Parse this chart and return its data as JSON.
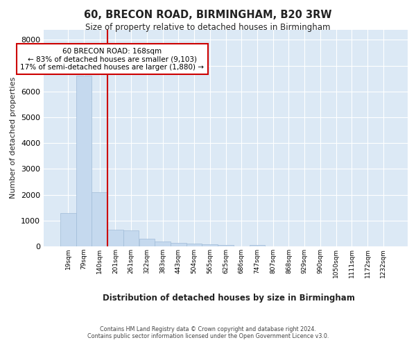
{
  "title1": "60, BRECON ROAD, BIRMINGHAM, B20 3RW",
  "title2": "Size of property relative to detached houses in Birmingham",
  "xlabel": "Distribution of detached houses by size in Birmingham",
  "ylabel": "Number of detached properties",
  "bar_labels": [
    "19sqm",
    "79sqm",
    "140sqm",
    "201sqm",
    "261sqm",
    "322sqm",
    "383sqm",
    "443sqm",
    "504sqm",
    "565sqm",
    "625sqm",
    "686sqm",
    "747sqm",
    "807sqm",
    "868sqm",
    "929sqm",
    "990sqm",
    "1050sqm",
    "1111sqm",
    "1172sqm",
    "1232sqm"
  ],
  "bar_values": [
    1300,
    6600,
    2100,
    650,
    620,
    300,
    200,
    130,
    100,
    70,
    55,
    10,
    45,
    5,
    5,
    5,
    3,
    2,
    2,
    2,
    2
  ],
  "bar_color": "#c5d9ee",
  "bar_edge_color": "#a0bcd8",
  "vline_x_index": 2,
  "vline_color": "#cc0000",
  "annotation_text": "60 BRECON ROAD: 168sqm\n← 83% of detached houses are smaller (9,103)\n17% of semi-detached houses are larger (1,880) →",
  "annotation_box_color": "#cc0000",
  "ylim": [
    0,
    8400
  ],
  "yticks": [
    0,
    1000,
    2000,
    3000,
    4000,
    5000,
    6000,
    7000,
    8000
  ],
  "background_color": "#dce9f5",
  "grid_color": "#ffffff",
  "footer1": "Contains HM Land Registry data © Crown copyright and database right 2024.",
  "footer2": "Contains public sector information licensed under the Open Government Licence v3.0."
}
